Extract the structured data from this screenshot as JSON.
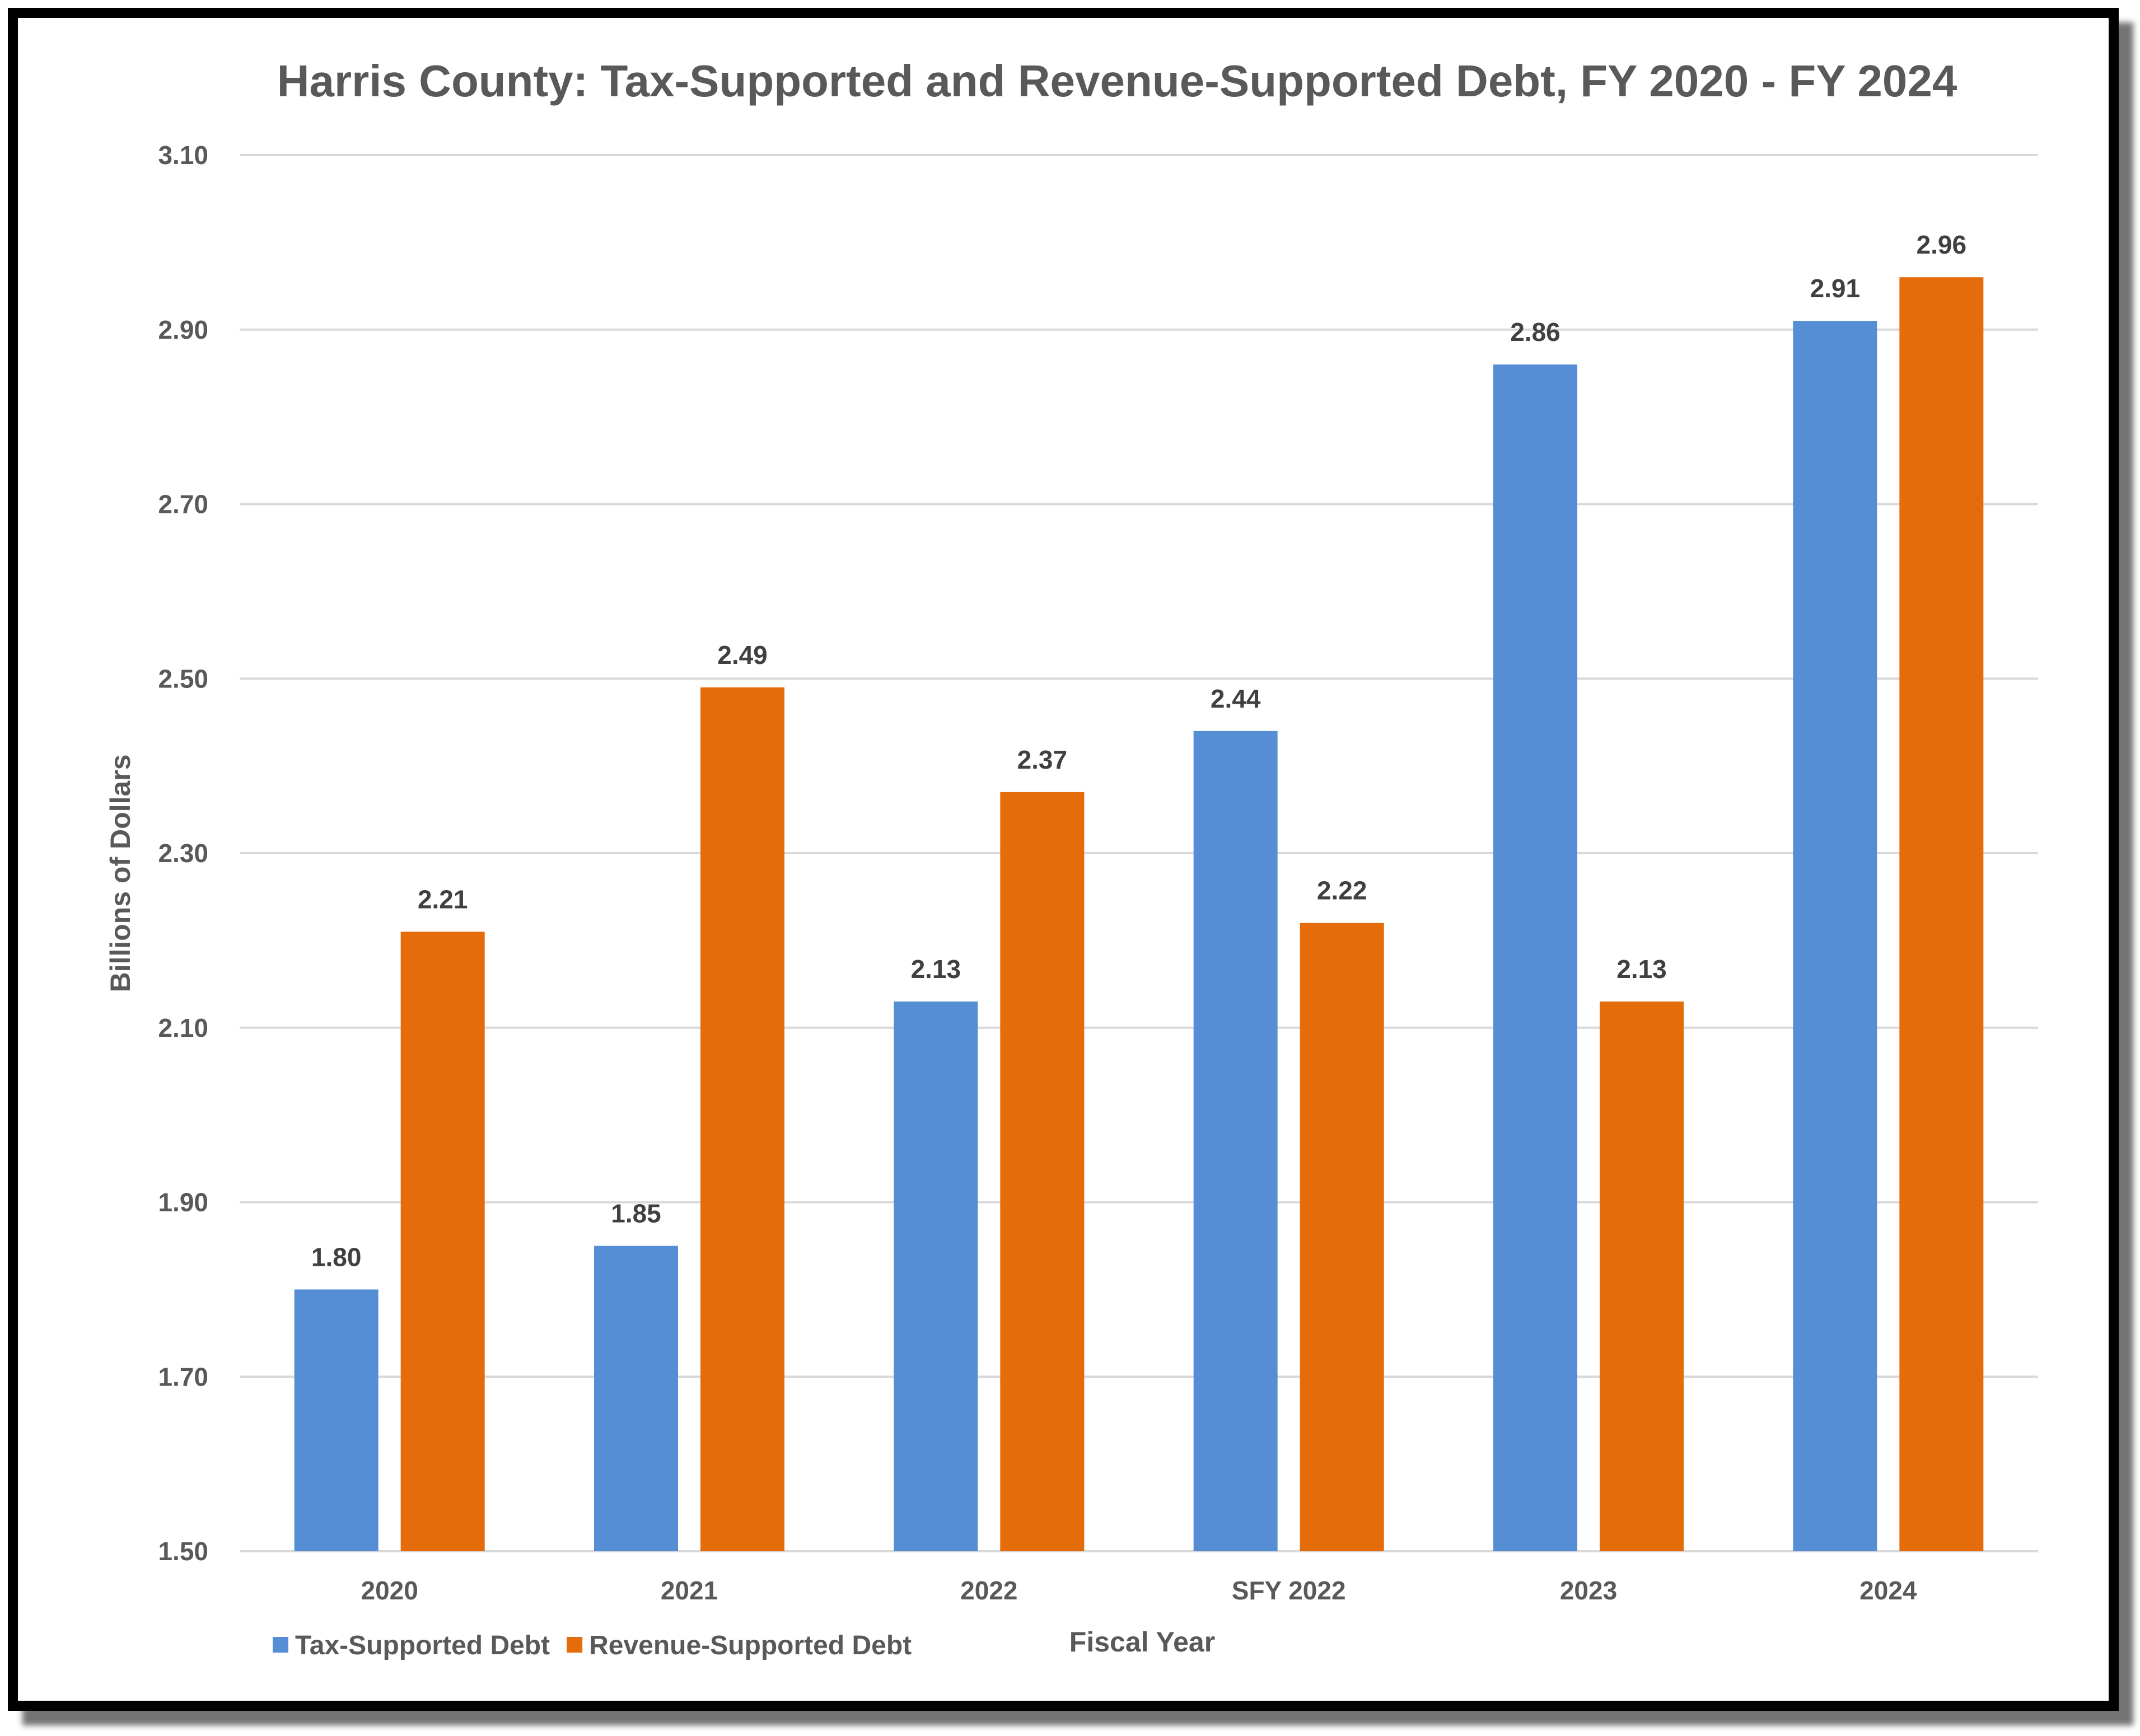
{
  "chart_data": {
    "type": "bar",
    "title": "Harris County: Tax-Supported and Revenue-Supported Debt, FY 2020 - FY 2024",
    "xlabel": "Fiscal Year",
    "ylabel": "Billions of Dollars",
    "categories": [
      "2020",
      "2021",
      "2022",
      "SFY 2022",
      "2023",
      "2024"
    ],
    "series": [
      {
        "name": "Tax-Supported Debt",
        "color": "#558ED5",
        "values": [
          1.8,
          1.85,
          2.13,
          2.44,
          2.86,
          2.91
        ]
      },
      {
        "name": "Revenue-Supported Debt",
        "color": "#E46C0A",
        "values": [
          2.21,
          2.49,
          2.37,
          2.22,
          2.13,
          2.96
        ]
      }
    ],
    "ylim": [
      1.5,
      3.1
    ],
    "yticks": [
      "1.50",
      "1.70",
      "1.90",
      "2.10",
      "2.30",
      "2.50",
      "2.70",
      "2.90",
      "3.10"
    ],
    "grid": true,
    "legend_position": "bottom-left"
  }
}
